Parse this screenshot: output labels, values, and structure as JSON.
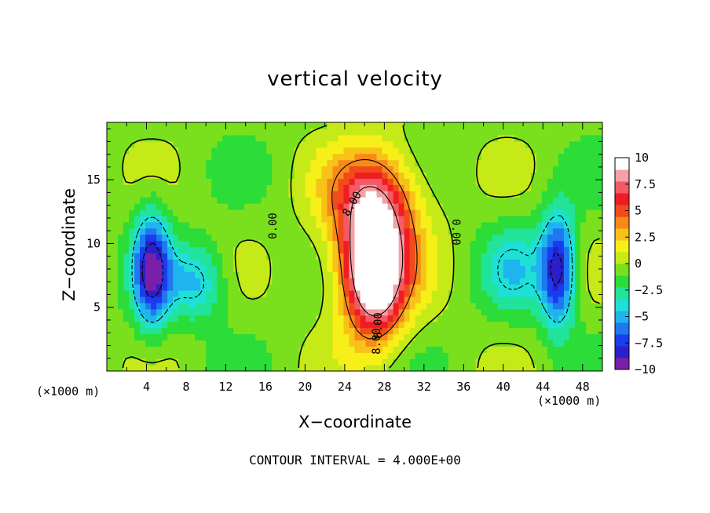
{
  "chart_data": {
    "type": "heatmap",
    "title": "vertical velocity",
    "xlabel": "X−coordinate",
    "ylabel": "Z−coordinate",
    "x_unit_label": "(×1000 m)",
    "xlim": [
      0,
      50
    ],
    "ylim": [
      0,
      19.5
    ],
    "x_ticks": [
      "4",
      "8",
      "12",
      "16",
      "20",
      "24",
      "28",
      "32",
      "36",
      "40",
      "44",
      "48"
    ],
    "y_ticks": [
      "5",
      "10",
      "15"
    ],
    "colorbar": {
      "range": [
        -10,
        10
      ],
      "tick_labels": [
        "10",
        "7.5",
        "5",
        "2.5",
        "0",
        "−2.5",
        "−5",
        "−7.5",
        "−10"
      ],
      "colors": [
        "#7a1fa8",
        "#2b1fc9",
        "#1a3cf0",
        "#1f78f0",
        "#1fb4f0",
        "#1fe0d6",
        "#21e39a",
        "#2cdc38",
        "#7ae01e",
        "#c6ea18",
        "#f6ef18",
        "#f7c318",
        "#f78a18",
        "#f24a1c",
        "#f01c24",
        "#f25a64",
        "#f5a0a4",
        "#ffffff"
      ]
    },
    "contour_labels": [
      "0.00",
      "8.00",
      "0.00",
      "8.00",
      "8.00"
    ],
    "contour_interval_text": "CONTOUR INTERVAL = 4.000E+00",
    "field_features": [
      {
        "label": "updraft core",
        "x": 27,
        "z": 8,
        "value": 10,
        "sx": 2.8,
        "sz": 5.0
      },
      {
        "label": "updraft shell",
        "x": 27,
        "z": 10,
        "value": 6,
        "sx": 4.6,
        "sz": 6.5
      },
      {
        "label": "updraft top",
        "x": 26.5,
        "z": 14,
        "value": 3,
        "sx": 5.0,
        "sz": 3.5
      },
      {
        "label": "left downdraft",
        "x": 4.5,
        "z": 8,
        "value": -8,
        "sx": 1.8,
        "sz": 4.5
      },
      {
        "label": "right downdraft",
        "x": 45.5,
        "z": 8,
        "value": -8,
        "sx": 1.8,
        "sz": 4.5
      },
      {
        "label": "left side",
        "x": 9,
        "z": 7,
        "value": -4,
        "sx": 3.0,
        "sz": 3.0
      },
      {
        "label": "right side",
        "x": 41,
        "z": 8,
        "value": -3,
        "sx": 3.0,
        "sz": 3.5
      }
    ]
  }
}
